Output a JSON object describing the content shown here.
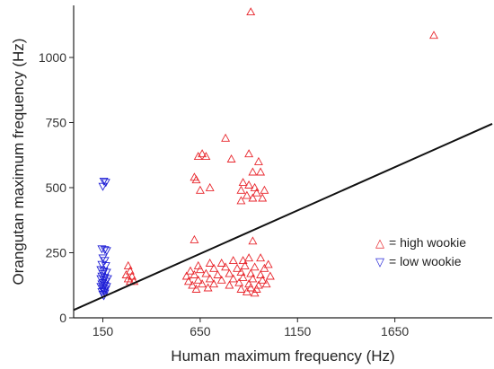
{
  "chart_data": {
    "type": "scatter",
    "title": "",
    "xlabel": "Human maximum frequency (Hz)",
    "ylabel": "Orangutan maximum frequency (Hz)",
    "xlim": [
      0,
      2150
    ],
    "ylim": [
      0,
      1200
    ],
    "x_ticks": [
      150,
      650,
      1150,
      1650
    ],
    "y_ticks": [
      0,
      250,
      500,
      750,
      1000
    ],
    "grid": false,
    "legend_position": "right",
    "colors": {
      "high": "#e8262c",
      "low": "#1f1fd6",
      "line": "#111111"
    },
    "series": [
      {
        "name": "high wookie",
        "marker": "triangle-up",
        "points": [
          [
            910,
            1175
          ],
          [
            1850,
            1085
          ],
          [
            780,
            690
          ],
          [
            660,
            630
          ],
          [
            640,
            620
          ],
          [
            680,
            620
          ],
          [
            900,
            630
          ],
          [
            950,
            600
          ],
          [
            810,
            610
          ],
          [
            620,
            540
          ],
          [
            630,
            530
          ],
          [
            920,
            560
          ],
          [
            960,
            560
          ],
          [
            700,
            500
          ],
          [
            650,
            490
          ],
          [
            870,
            520
          ],
          [
            900,
            510
          ],
          [
            930,
            500
          ],
          [
            860,
            490
          ],
          [
            940,
            480
          ],
          [
            980,
            490
          ],
          [
            890,
            470
          ],
          [
            970,
            460
          ],
          [
            860,
            450
          ],
          [
            920,
            460
          ],
          [
            620,
            300
          ],
          [
            920,
            295
          ],
          [
            280,
            200
          ],
          [
            290,
            180
          ],
          [
            270,
            165
          ],
          [
            300,
            160
          ],
          [
            280,
            150
          ],
          [
            310,
            140
          ],
          [
            290,
            140
          ],
          [
            640,
            200
          ],
          [
            700,
            210
          ],
          [
            760,
            210
          ],
          [
            820,
            220
          ],
          [
            870,
            220
          ],
          [
            900,
            230
          ],
          [
            960,
            230
          ],
          [
            1000,
            205
          ],
          [
            600,
            180
          ],
          [
            650,
            185
          ],
          [
            720,
            190
          ],
          [
            780,
            195
          ],
          [
            840,
            190
          ],
          [
            880,
            200
          ],
          [
            930,
            195
          ],
          [
            980,
            190
          ],
          [
            580,
            160
          ],
          [
            620,
            165
          ],
          [
            680,
            170
          ],
          [
            740,
            165
          ],
          [
            800,
            170
          ],
          [
            860,
            175
          ],
          [
            910,
            170
          ],
          [
            960,
            165
          ],
          [
            1010,
            160
          ],
          [
            590,
            140
          ],
          [
            640,
            145
          ],
          [
            700,
            150
          ],
          [
            760,
            145
          ],
          [
            820,
            150
          ],
          [
            870,
            155
          ],
          [
            920,
            150
          ],
          [
            970,
            145
          ],
          [
            610,
            125
          ],
          [
            660,
            130
          ],
          [
            720,
            130
          ],
          [
            800,
            125
          ],
          [
            850,
            135
          ],
          [
            900,
            130
          ],
          [
            950,
            125
          ],
          [
            990,
            130
          ],
          [
            630,
            110
          ],
          [
            690,
            115
          ],
          [
            860,
            110
          ],
          [
            910,
            115
          ],
          [
            940,
            110
          ],
          [
            890,
            100
          ],
          [
            930,
            95
          ]
        ]
      },
      {
        "name": "low wookie",
        "marker": "triangle-down",
        "points": [
          [
            155,
            525
          ],
          [
            165,
            520
          ],
          [
            150,
            505
          ],
          [
            145,
            265
          ],
          [
            160,
            262
          ],
          [
            170,
            258
          ],
          [
            150,
            230
          ],
          [
            160,
            220
          ],
          [
            145,
            205
          ],
          [
            165,
            200
          ],
          [
            140,
            185
          ],
          [
            155,
            180
          ],
          [
            170,
            175
          ],
          [
            150,
            170
          ],
          [
            145,
            160
          ],
          [
            160,
            155
          ],
          [
            175,
            150
          ],
          [
            140,
            150
          ],
          [
            155,
            145
          ],
          [
            165,
            140
          ],
          [
            150,
            135
          ],
          [
            145,
            130
          ],
          [
            160,
            125
          ],
          [
            170,
            120
          ],
          [
            140,
            120
          ],
          [
            150,
            115
          ],
          [
            165,
            110
          ],
          [
            155,
            105
          ],
          [
            145,
            100
          ],
          [
            160,
            95
          ],
          [
            150,
            90
          ],
          [
            155,
            85
          ]
        ]
      },
      {
        "name": "",
        "marker": "line",
        "points": [
          [
            0,
            30
          ],
          [
            2150,
            745
          ]
        ]
      }
    ],
    "legend": [
      {
        "symbol": "△",
        "label": "= high wookie",
        "color": "#e8262c"
      },
      {
        "symbol": "▽",
        "label": "= low wookie",
        "color": "#1f1fd6"
      }
    ]
  }
}
